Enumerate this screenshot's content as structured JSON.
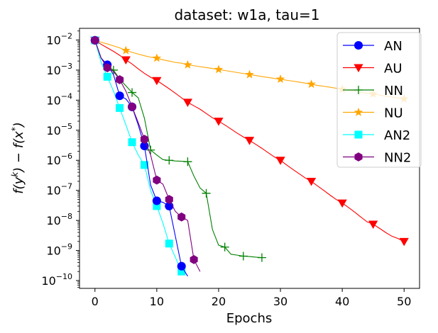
{
  "chart_data": {
    "type": "line",
    "title": "dataset: w1a, tau=1",
    "xlabel": "Epochs",
    "ylabel": "f(y^k) − f(x*)",
    "yscale": "log",
    "xlim": [
      -2.5,
      52.5
    ],
    "ylim": [
      5.5e-11,
      0.0245
    ],
    "x_ticks": [
      0,
      10,
      20,
      30,
      40,
      50
    ],
    "x_tick_labels": [
      "0",
      "10",
      "20",
      "30",
      "40",
      "50"
    ],
    "y_ticks": [
      1e-10,
      1e-09,
      1e-08,
      1e-07,
      1e-06,
      1e-05,
      0.0001,
      0.001,
      0.01
    ],
    "y_tick_labels": [
      {
        "base": "10",
        "exp": "−10"
      },
      {
        "base": "10",
        "exp": "−9"
      },
      {
        "base": "10",
        "exp": "−8"
      },
      {
        "base": "10",
        "exp": "−7"
      },
      {
        "base": "10",
        "exp": "−6"
      },
      {
        "base": "10",
        "exp": "−5"
      },
      {
        "base": "10",
        "exp": "−4"
      },
      {
        "base": "10",
        "exp": "−3"
      },
      {
        "base": "10",
        "exp": "−2"
      }
    ],
    "legend_position": "top-right",
    "series": [
      {
        "name": "NU",
        "color": "#ffa500",
        "marker": "star",
        "x": [
          0,
          1,
          2,
          3,
          4,
          5,
          6,
          7,
          8,
          9,
          10,
          11,
          12,
          13,
          14,
          15,
          16,
          17,
          18,
          19,
          20,
          21,
          22,
          23,
          24,
          25,
          26,
          27,
          28,
          29,
          30,
          31,
          32,
          33,
          34,
          35,
          36,
          37,
          38,
          39,
          40,
          41,
          42,
          43,
          44,
          45,
          46,
          47,
          48,
          49,
          50
        ],
        "y": [
          0.0098,
          0.0085,
          0.0074,
          0.0064,
          0.0055,
          0.0045,
          0.0039,
          0.0034,
          0.003,
          0.0027,
          0.0025,
          0.0022,
          0.002,
          0.0018,
          0.0017,
          0.0015,
          0.0014,
          0.0013,
          0.00122,
          0.00113,
          0.00105,
          0.00097,
          0.0009,
          0.00083,
          0.00077,
          0.00071,
          0.00066,
          0.00061,
          0.00057,
          0.00053,
          0.0005,
          0.00046,
          0.00043,
          0.0004,
          0.00037,
          0.00034,
          0.00031,
          0.00029,
          0.00027,
          0.00025,
          0.00023,
          0.00021,
          0.0002,
          0.00018,
          0.00017,
          0.00016,
          0.000148,
          0.000137,
          0.000127,
          0.000118,
          0.00011
        ],
        "marker_every": 5
      },
      {
        "name": "AU",
        "color": "#ff0000",
        "marker": "triangle_down",
        "x": [
          0,
          1,
          2,
          3,
          4,
          5,
          6,
          7,
          8,
          9,
          10,
          11,
          12,
          13,
          14,
          15,
          16,
          17,
          18,
          19,
          20,
          21,
          22,
          23,
          24,
          25,
          26,
          27,
          28,
          29,
          30,
          31,
          32,
          33,
          34,
          35,
          36,
          37,
          38,
          39,
          40,
          41,
          42,
          43,
          44,
          45,
          46,
          47,
          48,
          49,
          50
        ],
        "y": [
          0.0098,
          0.0072,
          0.0055,
          0.0042,
          0.0031,
          0.0022,
          0.0016,
          0.0011,
          0.00078,
          0.00058,
          0.00045,
          0.00033,
          0.00024,
          0.00017,
          0.00012,
          8.5e-05,
          6.5e-05,
          5e-05,
          3.6e-05,
          2.6e-05,
          2e-05,
          1.5e-05,
          1.1e-05,
          8e-06,
          6e-06,
          4.6e-06,
          3.4e-06,
          2.5e-06,
          1.8e-06,
          1.3e-06,
          1e-06,
          7e-07,
          5e-07,
          3.6e-07,
          2.6e-07,
          2e-07,
          1.4e-07,
          1e-07,
          7e-08,
          5e-08,
          3.8e-08,
          2.7e-08,
          1.9e-08,
          1.3e-08,
          9e-09,
          7.5e-09,
          5.5e-09,
          4e-09,
          3e-09,
          2.5e-09,
          2e-09
        ],
        "marker_every": 5
      },
      {
        "name": "NN",
        "color": "#008000",
        "marker": "plus",
        "x": [
          0,
          1,
          2,
          3,
          4,
          5,
          6,
          7,
          8,
          9,
          10,
          11,
          12,
          13,
          14,
          15,
          16,
          17,
          18,
          19,
          20,
          21,
          22,
          23,
          24,
          25,
          26,
          27
        ],
        "y": [
          0.0098,
          0.0025,
          0.0013,
          0.001,
          0.0005,
          0.0003,
          0.00018,
          0.00012,
          2.5e-05,
          2.2e-06,
          1.5e-06,
          1.05e-06,
          1e-06,
          9.5e-07,
          9.3e-07,
          9e-07,
          3e-07,
          1.2e-07,
          8e-08,
          5e-09,
          1.5e-09,
          1.3e-09,
          7.5e-10,
          7e-10,
          6.5e-10,
          6.3e-10,
          6e-10,
          5.8e-10
        ],
        "marker_every": 3
      },
      {
        "name": "AN2",
        "color": "#00ffff",
        "marker": "square",
        "x": [
          0,
          1,
          2,
          3,
          4,
          5,
          6,
          7,
          8,
          9,
          10,
          11,
          12,
          13,
          14
        ],
        "y": [
          0.0098,
          0.0018,
          0.0006,
          0.0002,
          5.5e-05,
          1.5e-05,
          4e-06,
          1.5e-06,
          7e-07,
          1e-07,
          3e-08,
          8e-09,
          1.7e-09,
          6e-10,
          2e-10
        ],
        "marker_every": 2
      },
      {
        "name": "AN",
        "color": "#0000ff",
        "marker": "circle",
        "x": [
          0,
          1,
          2,
          3,
          4,
          5,
          6,
          7,
          8,
          9,
          10,
          11,
          12,
          13,
          14,
          15
        ],
        "y": [
          0.0098,
          0.0025,
          0.0015,
          0.0007,
          0.00014,
          0.00011,
          6e-05,
          1.5e-05,
          3e-06,
          1.5e-07,
          4.5e-08,
          4e-08,
          3e-08,
          3e-09,
          3e-10,
          1.4e-10
        ],
        "marker_every": 2
      },
      {
        "name": "NN2",
        "color": "#800080",
        "marker": "hexagon",
        "x": [
          0,
          1,
          2,
          3,
          4,
          5,
          6,
          7,
          8,
          9,
          10,
          11,
          12,
          13,
          14,
          15,
          16,
          17
        ],
        "y": [
          0.0098,
          0.0025,
          0.0012,
          0.0009,
          0.00048,
          0.0002,
          6e-05,
          1.8e-05,
          5e-06,
          1.5e-06,
          2.2e-07,
          1.6e-07,
          5e-08,
          2e-08,
          1.3e-08,
          1e-08,
          5e-10,
          2e-10
        ],
        "marker_every": 2
      }
    ],
    "legend_order": [
      "AN",
      "AU",
      "NN",
      "NU",
      "AN2",
      "NN2"
    ]
  }
}
